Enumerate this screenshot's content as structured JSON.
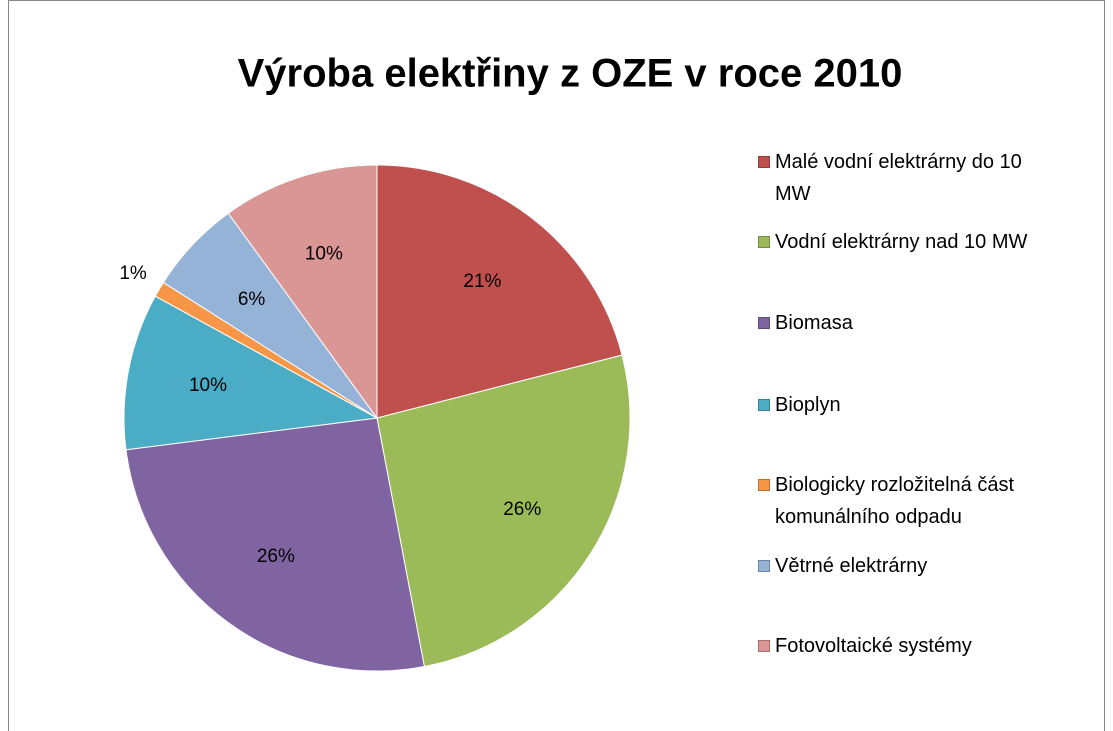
{
  "chart_data": {
    "type": "pie",
    "title": "Výroba elektřiny z OZE v roce 2010",
    "categories": [
      "Malé vodní elektrárny do 10 MW",
      "Vodní elektrárny nad 10 MW",
      "Biomasa",
      "Bioplyn",
      "Biologicky rozložitelná část komunálního odpadu",
      "Větrné elektrárny",
      "Fotovoltaické systémy"
    ],
    "values": [
      21,
      26,
      26,
      10,
      1,
      6,
      10
    ],
    "value_labels": [
      "21%",
      "26%",
      "26%",
      "10%",
      "1%",
      "6%",
      "10%"
    ],
    "colors": [
      "#c0504d",
      "#9bbb59",
      "#8064a2",
      "#4bacc6",
      "#f79646",
      "#95b3d7",
      "#d99694"
    ],
    "legend": "right"
  }
}
